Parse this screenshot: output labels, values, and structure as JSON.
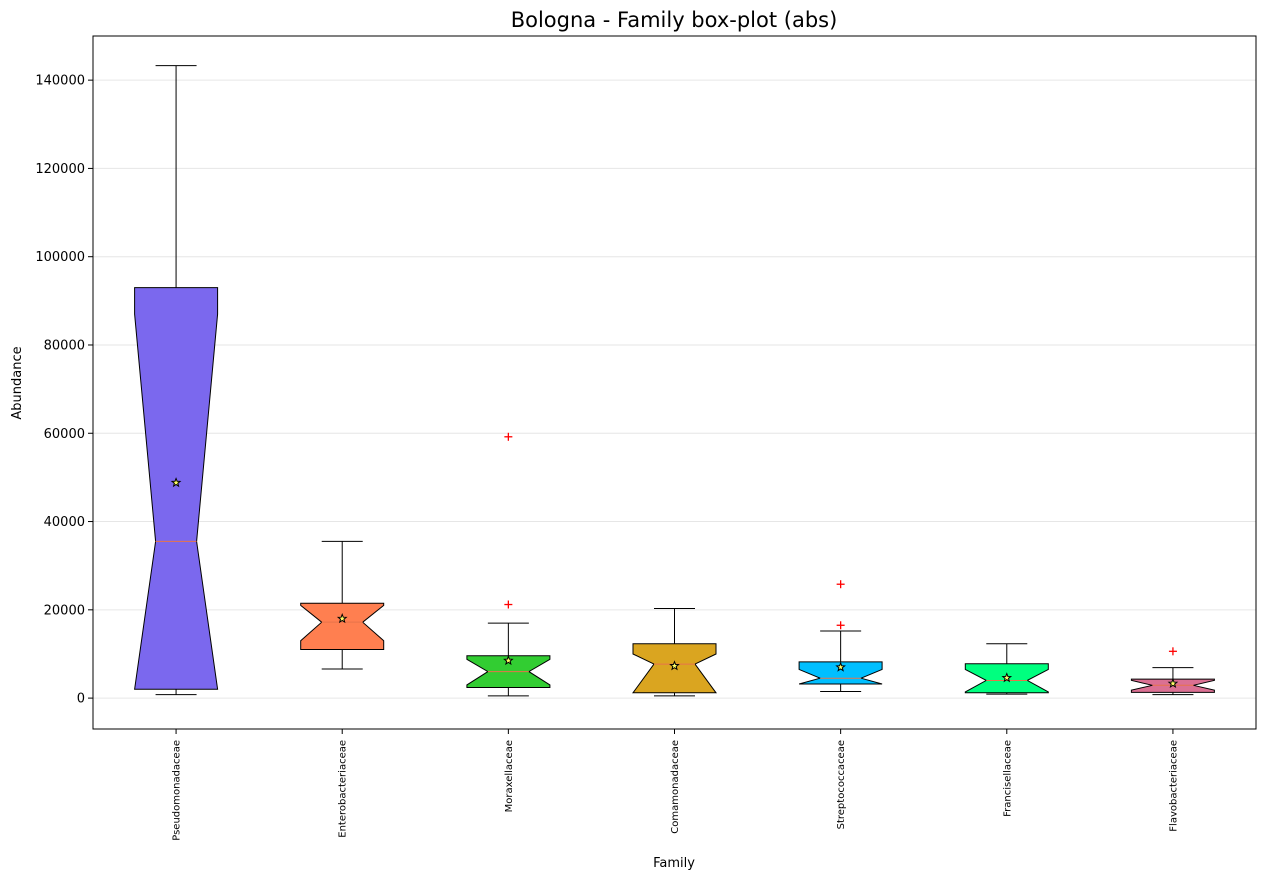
{
  "chart_data": {
    "type": "box",
    "title": "Bologna - Family box-plot (abs)",
    "xlabel": "Family",
    "ylabel": "Abundance",
    "ylim": [
      -7000,
      150000
    ],
    "yticks": [
      0,
      20000,
      40000,
      60000,
      80000,
      100000,
      120000,
      140000
    ],
    "yticklabels": [
      "0",
      "20000",
      "40000",
      "60000",
      "80000",
      "100000",
      "120000",
      "140000"
    ],
    "grid": "y",
    "notched": true,
    "outlier_color": "#ff0000",
    "median_color": "#e8734a",
    "categories": [
      "Pseudomonadaceae",
      "Enterobacteriaceae",
      "Moraxellaceae",
      "Comamonadaceae",
      "Streptococcaceae",
      "Francisellaceae",
      "Flavobacteriaceae"
    ],
    "boxes": [
      {
        "name": "Pseudomonadaceae",
        "color": "#7b68ee",
        "whislo": 800,
        "q1": 2000,
        "med": 35500,
        "q3": 93000,
        "whishi": 143300,
        "notch_lo": 2000,
        "notch_hi": 87000,
        "mean": 48800,
        "fliers": []
      },
      {
        "name": "Enterobacteriaceae",
        "color": "#ff7f50",
        "whislo": 6600,
        "q1": 11000,
        "med": 17200,
        "q3": 21500,
        "whishi": 35500,
        "notch_lo": 13000,
        "notch_hi": 21000,
        "mean": 18000,
        "fliers": []
      },
      {
        "name": "Moraxellaceae",
        "color": "#32cd32",
        "whislo": 500,
        "q1": 2400,
        "med": 6000,
        "q3": 9600,
        "whishi": 17000,
        "notch_lo": 3000,
        "notch_hi": 8800,
        "mean": 8500,
        "fliers": [
          21200,
          59200
        ]
      },
      {
        "name": "Comamonadaceae",
        "color": "#daa520",
        "whislo": 500,
        "q1": 1200,
        "med": 7700,
        "q3": 12300,
        "whishi": 20300,
        "notch_lo": 1200,
        "notch_hi": 10000,
        "mean": 7300,
        "fliers": []
      },
      {
        "name": "Streptococcaceae",
        "color": "#00bfff",
        "whislo": 1500,
        "q1": 3200,
        "med": 4500,
        "q3": 8200,
        "whishi": 15200,
        "notch_lo": 3200,
        "notch_hi": 6500,
        "mean": 7000,
        "fliers": [
          16500,
          25800
        ]
      },
      {
        "name": "Francisellaceae",
        "color": "#00ff7f",
        "whislo": 900,
        "q1": 1200,
        "med": 4000,
        "q3": 7800,
        "whishi": 12300,
        "notch_lo": 1400,
        "notch_hi": 6500,
        "mean": 4600,
        "fliers": []
      },
      {
        "name": "Flavobacteriaceae",
        "color": "#db7093",
        "whislo": 800,
        "q1": 1300,
        "med": 2900,
        "q3": 4300,
        "whishi": 6900,
        "notch_lo": 1800,
        "notch_hi": 4000,
        "mean": 3300,
        "fliers": [
          10600
        ]
      }
    ]
  }
}
